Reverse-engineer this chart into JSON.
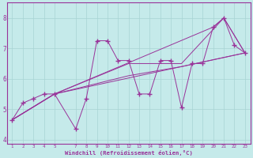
{
  "xlabel": "Windchill (Refroidissement éolien,°C)",
  "xlim": [
    0.5,
    23.5
  ],
  "ylim": [
    3.85,
    8.5
  ],
  "yticks": [
    4,
    5,
    6,
    7,
    8
  ],
  "xticks": [
    1,
    2,
    3,
    4,
    5,
    7,
    8,
    9,
    10,
    11,
    12,
    13,
    14,
    15,
    16,
    17,
    18,
    19,
    20,
    21,
    22,
    23
  ],
  "background_color": "#c5eaea",
  "grid_color": "#a8d4d4",
  "line_color": "#993399",
  "zigzag_x": [
    1,
    2,
    3,
    4,
    5,
    7,
    8,
    9,
    10,
    11,
    12,
    13,
    14,
    15,
    16,
    17,
    18,
    19,
    20,
    21,
    22,
    23
  ],
  "zigzag_y": [
    4.65,
    5.2,
    5.35,
    5.5,
    5.5,
    4.35,
    5.35,
    7.25,
    7.25,
    6.6,
    6.6,
    5.5,
    5.5,
    6.6,
    6.6,
    5.05,
    6.5,
    6.5,
    7.7,
    8.0,
    7.1,
    6.85
  ],
  "trend1_x": [
    1,
    5,
    23
  ],
  "trend1_y": [
    4.65,
    5.5,
    6.85
  ],
  "trend2_x": [
    1,
    5,
    12,
    17,
    23
  ],
  "trend2_y": [
    4.65,
    5.5,
    6.1,
    6.4,
    6.85
  ],
  "trend3_x": [
    1,
    5,
    12,
    17,
    21,
    23
  ],
  "trend3_y": [
    4.65,
    5.5,
    6.5,
    6.5,
    8.0,
    6.85
  ],
  "trend4_x": [
    1,
    5,
    20,
    21,
    23
  ],
  "trend4_y": [
    4.65,
    5.5,
    7.7,
    8.0,
    6.85
  ],
  "figsize": [
    3.2,
    2.0
  ],
  "dpi": 100
}
